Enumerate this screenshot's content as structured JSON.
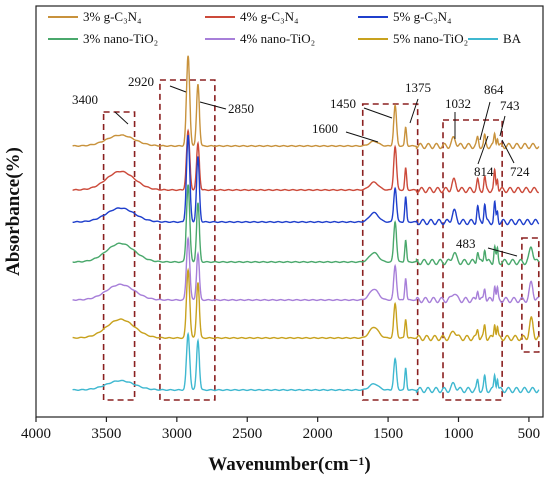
{
  "chart_data": {
    "type": "line",
    "title": "",
    "xlabel": "Wavenumber(cm⁻¹)",
    "ylabel": "Absorbance(%)",
    "xlim": [
      4000,
      400
    ],
    "x_reversed": true,
    "x_ticks": [
      4000,
      3500,
      3000,
      2500,
      2000,
      1500,
      1000,
      500
    ],
    "y_ticks_shown": false,
    "legend_position": "top",
    "series": [
      {
        "name": "3% g-C₃N₄",
        "color": "#c8923c",
        "peaks": [
          [
            3400,
            7
          ],
          [
            2920,
            58
          ],
          [
            2850,
            40
          ],
          [
            1600,
            3
          ],
          [
            1450,
            26
          ],
          [
            1375,
            12
          ],
          [
            1032,
            5
          ],
          [
            864,
            5
          ],
          [
            814,
            6
          ],
          [
            743,
            8
          ],
          [
            724,
            6
          ]
        ]
      },
      {
        "name": "4% g-C₃N₄",
        "color": "#cc4a3a",
        "peaks": [
          [
            3400,
            12
          ],
          [
            2920,
            38
          ],
          [
            2850,
            30
          ],
          [
            1600,
            5
          ],
          [
            1450,
            28
          ],
          [
            1375,
            14
          ],
          [
            1032,
            6
          ],
          [
            864,
            6
          ],
          [
            814,
            8
          ],
          [
            743,
            12
          ],
          [
            724,
            8
          ]
        ]
      },
      {
        "name": "5% g-C₃N₄",
        "color": "#1f3fcc",
        "peaks": [
          [
            3400,
            9
          ],
          [
            2920,
            56
          ],
          [
            2850,
            42
          ],
          [
            1600,
            6
          ],
          [
            1450,
            22
          ],
          [
            1375,
            16
          ],
          [
            1032,
            7
          ],
          [
            864,
            10
          ],
          [
            814,
            12
          ],
          [
            743,
            12
          ],
          [
            724,
            7
          ]
        ]
      },
      {
        "name": "3% nano-TiO₂",
        "color": "#4aa86c",
        "peaks": [
          [
            3400,
            12
          ],
          [
            2920,
            50
          ],
          [
            2850,
            38
          ],
          [
            1600,
            6
          ],
          [
            1450,
            26
          ],
          [
            1375,
            14
          ],
          [
            1032,
            6
          ],
          [
            864,
            7
          ],
          [
            814,
            9
          ],
          [
            743,
            10
          ],
          [
            724,
            8
          ],
          [
            483,
            10
          ]
        ]
      },
      {
        "name": "4% nano-TiO₂",
        "color": "#a77fd9",
        "peaks": [
          [
            3400,
            10
          ],
          [
            2920,
            40
          ],
          [
            2850,
            30
          ],
          [
            1600,
            7
          ],
          [
            1450,
            22
          ],
          [
            1375,
            14
          ],
          [
            1032,
            5
          ],
          [
            864,
            7
          ],
          [
            814,
            8
          ],
          [
            743,
            10
          ],
          [
            724,
            7
          ],
          [
            483,
            11
          ]
        ]
      },
      {
        "name": "5% nano-TiO₂",
        "color": "#c8a21e",
        "peaks": [
          [
            3400,
            12
          ],
          [
            2920,
            44
          ],
          [
            2850,
            36
          ],
          [
            1600,
            7
          ],
          [
            1450,
            22
          ],
          [
            1375,
            12
          ],
          [
            1032,
            5
          ],
          [
            864,
            6
          ],
          [
            814,
            8
          ],
          [
            743,
            10
          ],
          [
            724,
            7
          ],
          [
            483,
            12
          ]
        ]
      },
      {
        "name": "BA",
        "color": "#3fb8d0",
        "peaks": [
          [
            3400,
            6
          ],
          [
            2920,
            36
          ],
          [
            2850,
            32
          ],
          [
            1600,
            4
          ],
          [
            1450,
            20
          ],
          [
            1375,
            14
          ],
          [
            1032,
            4
          ],
          [
            864,
            6
          ],
          [
            814,
            8
          ],
          [
            743,
            10
          ],
          [
            724,
            8
          ]
        ]
      }
    ],
    "annotations": [
      {
        "label": "3400",
        "wavenumber": 3400
      },
      {
        "label": "2920",
        "wavenumber": 2920
      },
      {
        "label": "2850",
        "wavenumber": 2850
      },
      {
        "label": "1600",
        "wavenumber": 1600
      },
      {
        "label": "1450",
        "wavenumber": 1450
      },
      {
        "label": "1375",
        "wavenumber": 1375
      },
      {
        "label": "1032",
        "wavenumber": 1032
      },
      {
        "label": "864",
        "wavenumber": 864
      },
      {
        "label": "814",
        "wavenumber": 814
      },
      {
        "label": "743",
        "wavenumber": 743
      },
      {
        "label": "724",
        "wavenumber": 724
      },
      {
        "label": "483",
        "wavenumber": 483
      }
    ],
    "highlight_regions": [
      {
        "from": 3520,
        "to": 3300
      },
      {
        "from": 3120,
        "to": 2730
      },
      {
        "from": 1680,
        "to": 1290
      },
      {
        "from": 1110,
        "to": 690
      },
      {
        "from": 550,
        "to": 430
      }
    ]
  }
}
